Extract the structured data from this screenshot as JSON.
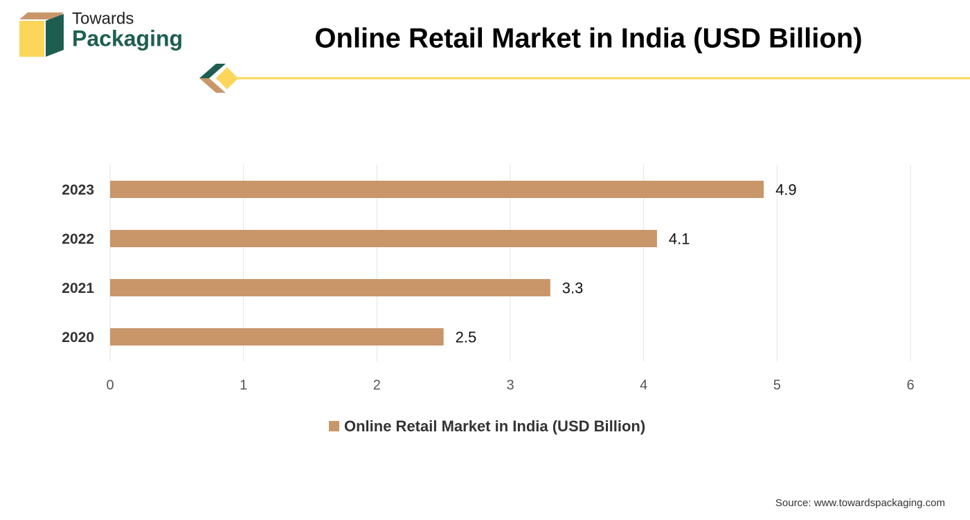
{
  "brand": {
    "line1": "Towards",
    "line2": "Packaging"
  },
  "chart_data": {
    "type": "bar",
    "orientation": "horizontal",
    "title": "Online Retail Market in India (USD Billion)",
    "categories": [
      "2020",
      "2021",
      "2022",
      "2023"
    ],
    "series": [
      {
        "name": "Online Retail Market in India (USD Billion)",
        "color": "#c9966a",
        "values": [
          2.5,
          3.3,
          4.1,
          4.9
        ]
      }
    ],
    "xlim": [
      0,
      6
    ],
    "xticks": [
      0,
      1,
      2,
      3,
      4,
      5,
      6
    ],
    "grid": true,
    "legend": "bottom"
  },
  "source": "Source: www.towardspackaging.com"
}
